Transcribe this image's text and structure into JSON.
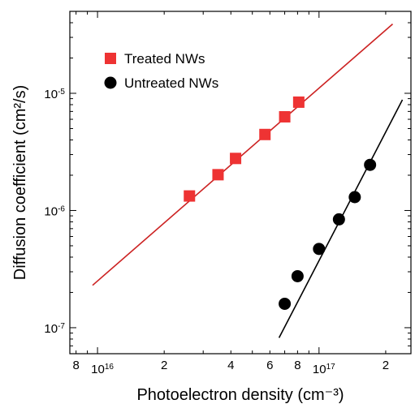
{
  "chart_data": {
    "type": "scatter",
    "title": "",
    "xlabel": "Photoelectron density (cm⁻³)",
    "ylabel": "Diffusion coefficient (cm²/s)",
    "x_scale": "log",
    "y_scale": "log",
    "xlim": [
      7500000000000000.0,
      2.6e+17
    ],
    "ylim": [
      6e-08,
      5e-05
    ],
    "grid": false,
    "legend_position": "top-left",
    "x_ticks": [
      {
        "value": 8000000000000000.0,
        "label": "8"
      },
      {
        "value": 1e+16,
        "label": "10",
        "exp": "16"
      },
      {
        "value": 2e+16,
        "label": "2"
      },
      {
        "value": 4e+16,
        "label": "4"
      },
      {
        "value": 6e+16,
        "label": "6"
      },
      {
        "value": 8e+16,
        "label": "8"
      },
      {
        "value": 1e+17,
        "label": "10",
        "exp": "17"
      },
      {
        "value": 2e+17,
        "label": "2"
      }
    ],
    "y_ticks": [
      {
        "value": 1e-07,
        "label": "10",
        "exp": "-7"
      },
      {
        "value": 1e-06,
        "label": "10",
        "exp": "-6"
      },
      {
        "value": 1e-05,
        "label": "10",
        "exp": "-5"
      }
    ],
    "series": [
      {
        "name": "Treated NWs",
        "marker": "square",
        "color": "#ee3333",
        "x": [
          2.6e+16,
          3.5e+16,
          4.2e+16,
          5.7e+16,
          7e+16,
          8.1e+16
        ],
        "y": [
          1.33e-06,
          2.02e-06,
          2.78e-06,
          4.45e-06,
          6.3e-06,
          8.4e-06
        ],
        "fit": {
          "x": [
            9500000000000000.0,
            2.15e+17
          ],
          "y": [
            2.3e-07,
            3.9e-05
          ],
          "color": "#cc2222"
        }
      },
      {
        "name": "Untreated NWs",
        "marker": "circle",
        "color": "#000000",
        "x": [
          7e+16,
          8e+16,
          1e+17,
          1.23e+17,
          1.45e+17,
          1.7e+17
        ],
        "y": [
          1.6e-07,
          2.75e-07,
          4.7e-07,
          8.4e-07,
          1.3e-06,
          2.45e-06
        ],
        "fit": {
          "x": [
            6.6e+16,
            2.38e+17
          ],
          "y": [
            8.2e-08,
            8.8e-06
          ],
          "color": "#000000"
        }
      }
    ]
  }
}
